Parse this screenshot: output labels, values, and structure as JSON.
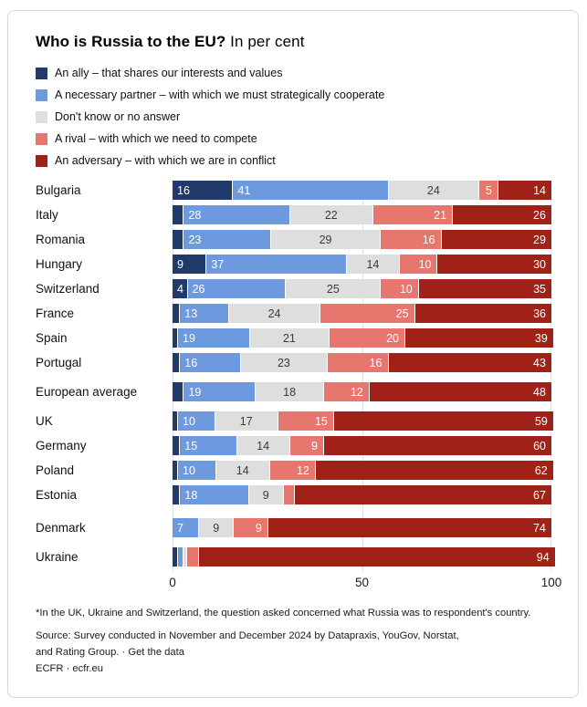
{
  "header": {
    "title_bold": "Who is Russia to the EU?",
    "title_rest": " In per cent"
  },
  "legend": {
    "items": [
      {
        "key": "ally",
        "label": "An ally – that shares our interests and values",
        "color": "#1f3a6b"
      },
      {
        "key": "partner",
        "label": "A necessary partner – with which we must strategically cooperate",
        "color": "#6d99df"
      },
      {
        "key": "dontknow",
        "label": "Don't know or no answer",
        "color": "#dedede"
      },
      {
        "key": "rival",
        "label": "A rival – with which we need to compete",
        "color": "#e7766e"
      },
      {
        "key": "adversary",
        "label": "An adversary – with which we are in conflict",
        "color": "#9f2118"
      }
    ]
  },
  "chart_data": {
    "type": "bar",
    "orientation": "horizontal",
    "stacked": true,
    "title": "Who is Russia to the EU? In per cent",
    "xlim": [
      0,
      100
    ],
    "xticks": [
      0,
      50,
      100
    ],
    "grid": "vertical-faint",
    "legend_position": "top",
    "label_min_value": 4,
    "categories": [
      "Bulgaria",
      "Italy",
      "Romania",
      "Hungary",
      "Switzerland",
      "France",
      "Spain",
      "Portugal",
      "European average",
      "UK",
      "Germany",
      "Poland",
      "Estonia",
      "Denmark",
      "Ukraine"
    ],
    "row_extra_gap": {
      "European average": 5,
      "UK": 5,
      "Denmark": 9,
      "Ukraine": 5
    },
    "series": [
      {
        "name": "An ally – that shares our interests and values",
        "color": "#1f3a6b",
        "text_color": "#ffffff",
        "label_align": "left",
        "values": [
          16,
          3,
          3,
          9,
          4,
          2,
          1,
          2,
          3,
          1,
          2,
          1,
          2,
          0,
          1
        ]
      },
      {
        "name": "A necessary partner – with which we must strategically cooperate",
        "color": "#6d99df",
        "text_color": "#ffffff",
        "label_align": "left",
        "values": [
          41,
          28,
          23,
          37,
          26,
          13,
          19,
          16,
          19,
          10,
          15,
          10,
          18,
          7,
          1
        ]
      },
      {
        "name": "Don't know or no answer",
        "color": "#dedede",
        "text_color": "#3a3a3a",
        "label_align": "center",
        "values": [
          24,
          22,
          29,
          14,
          25,
          24,
          21,
          23,
          18,
          17,
          14,
          14,
          9,
          9,
          1
        ]
      },
      {
        "name": "A rival – with which we need to compete",
        "color": "#e7766e",
        "text_color": "#ffffff",
        "label_align": "right",
        "values": [
          5,
          21,
          16,
          10,
          10,
          25,
          20,
          16,
          12,
          15,
          9,
          12,
          3,
          9,
          3
        ]
      },
      {
        "name": "An adversary – with which we are in conflict",
        "color": "#9f2118",
        "text_color": "#ffffff",
        "label_align": "right",
        "values": [
          14,
          26,
          29,
          30,
          35,
          36,
          39,
          43,
          48,
          59,
          60,
          62,
          67,
          74,
          94
        ]
      }
    ]
  },
  "footer": {
    "footnote": "*In the UK, Ukraine and Switzerland, the question asked concerned what Russia was to respondent's country.",
    "source_prefix": "Source: Survey conducted in November and December 2024 by Datapraxis, YouGov, Norstat, and Rating Group. · ",
    "source_link": "Get the data",
    "org_line": "ECFR · ecfr.eu"
  }
}
